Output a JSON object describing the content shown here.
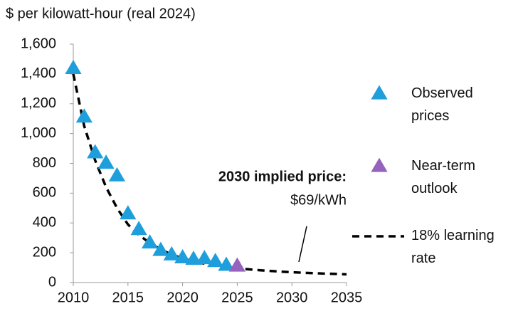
{
  "chart_data": {
    "type": "scatter",
    "y_axis_label": "$ per kilowatt-hour (real 2024)",
    "xlim": [
      2010,
      2035
    ],
    "xticks": [
      2010,
      2015,
      2020,
      2025,
      2030,
      2035
    ],
    "ylim": [
      0,
      1600
    ],
    "yticks": [
      0,
      200,
      400,
      600,
      800,
      {
        "value": 1000,
        "label": "1,000"
      },
      {
        "value": 1200,
        "label": "1,200"
      },
      {
        "value": 1400,
        "label": "1,400"
      },
      {
        "value": 1600,
        "label": "1,600"
      }
    ],
    "series": [
      {
        "name": "Observed prices",
        "color": "#1e9fdb",
        "marker": "triangle",
        "x": [
          2010,
          2011,
          2012,
          2013,
          2014,
          2015,
          2016,
          2017,
          2018,
          2019,
          2020,
          2021,
          2022,
          2023,
          2024
        ],
        "values": [
          1436,
          1110,
          870,
          800,
          715,
          460,
          355,
          265,
          215,
          185,
          165,
          155,
          160,
          140,
          115
        ]
      },
      {
        "name": "Near-term outlook",
        "color": "#9563bd",
        "marker": "triangle",
        "x": [
          2025
        ],
        "values": [
          110
        ]
      },
      {
        "name": "18% learning rate",
        "color": "#000000",
        "line_style": "dashed",
        "x": [
          2010,
          2011,
          2012,
          2013,
          2014,
          2015,
          2016,
          2017,
          2018,
          2019,
          2020,
          2021,
          2022,
          2023,
          2024,
          2025,
          2026,
          2027,
          2028,
          2029,
          2030,
          2031,
          2032,
          2033,
          2034,
          2035
        ],
        "values": [
          1400,
          1050,
          820,
          640,
          500,
          390,
          320,
          265,
          222,
          188,
          162,
          142,
          127,
          114,
          104,
          96,
          89,
          83,
          78,
          73,
          69,
          66,
          63,
          60,
          58,
          55
        ]
      }
    ],
    "annotations": [
      {
        "text": "2030 implied price:",
        "bold": true
      },
      {
        "text": "$69/kWh",
        "bold": false
      }
    ]
  }
}
